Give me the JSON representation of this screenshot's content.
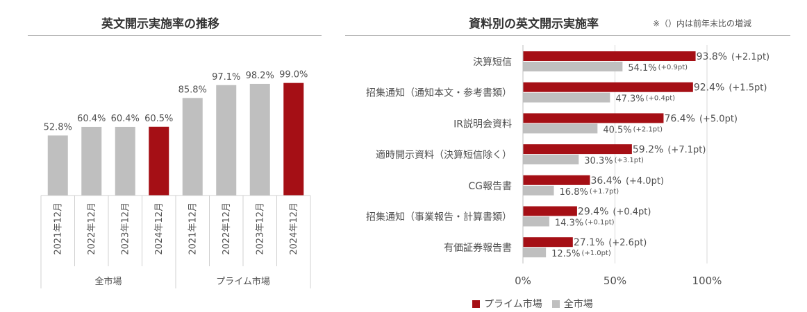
{
  "chart_data": [
    {
      "type": "bar",
      "title": "英文開示実施率の推移",
      "categories": [
        "2021年12月",
        "2022年12月",
        "2023年12月",
        "2024年12月",
        "2021年12月",
        "2022年12月",
        "2023年12月",
        "2024年12月"
      ],
      "groups": [
        {
          "label": "全市場",
          "count": 4
        },
        {
          "label": "プライム市場",
          "count": 4
        }
      ],
      "values": [
        52.8,
        60.4,
        60.4,
        60.5,
        85.8,
        97.1,
        98.2,
        99.0
      ],
      "value_labels": [
        "52.8%",
        "60.4%",
        "60.4%",
        "60.5%",
        "85.8%",
        "97.1%",
        "98.2%",
        "99.0%"
      ],
      "highlight_index": [
        3,
        7
      ],
      "ylim": [
        0,
        100
      ],
      "colors": {
        "default": "#bfbfbf",
        "highlight": "#a50f15"
      }
    },
    {
      "type": "bar",
      "orientation": "horizontal",
      "title": "資料別の英文開示実施率",
      "note": "※（）内は前年末比の増減",
      "categories": [
        "決算短信",
        "招集通知（通知本文・参考書類）",
        "IR説明会資料",
        "適時開示資料（決算短信除く）",
        "CG報告書",
        "招集通知（事業報告・計算書類）",
        "有価証券報告書"
      ],
      "series": [
        {
          "name": "プライム市場",
          "color": "#a50f15",
          "values": [
            93.8,
            92.4,
            76.4,
            59.2,
            36.4,
            29.4,
            27.1
          ],
          "labels": [
            "93.8%",
            "92.4%",
            "76.4%",
            "59.2%",
            "36.4%",
            "29.4%",
            "27.1%"
          ],
          "changes": [
            "(+2.1pt)",
            "(+1.5pt)",
            "(+5.0pt)",
            "(+7.1pt)",
            "(+4.0pt)",
            "(+0.4pt)",
            "(+2.6pt)"
          ]
        },
        {
          "name": "全市場",
          "color": "#bfbfbf",
          "values": [
            54.1,
            47.3,
            40.5,
            30.3,
            16.8,
            14.3,
            12.5
          ],
          "labels": [
            "54.1%",
            "47.3%",
            "40.5%",
            "30.3%",
            "16.8%",
            "14.3%",
            "12.5%"
          ],
          "changes": [
            "(+0.9pt)",
            "(+0.4pt)",
            "(+2.1pt)",
            "(+3.1pt)",
            "(+1.7pt)",
            "(+0.1pt)",
            "(+1.0pt)"
          ]
        }
      ],
      "xlim": [
        0,
        100
      ],
      "xticks": [
        0,
        50,
        100
      ],
      "xtick_labels": [
        "0%",
        "50%",
        "100%"
      ],
      "grid": true,
      "legend": "bottom"
    }
  ]
}
